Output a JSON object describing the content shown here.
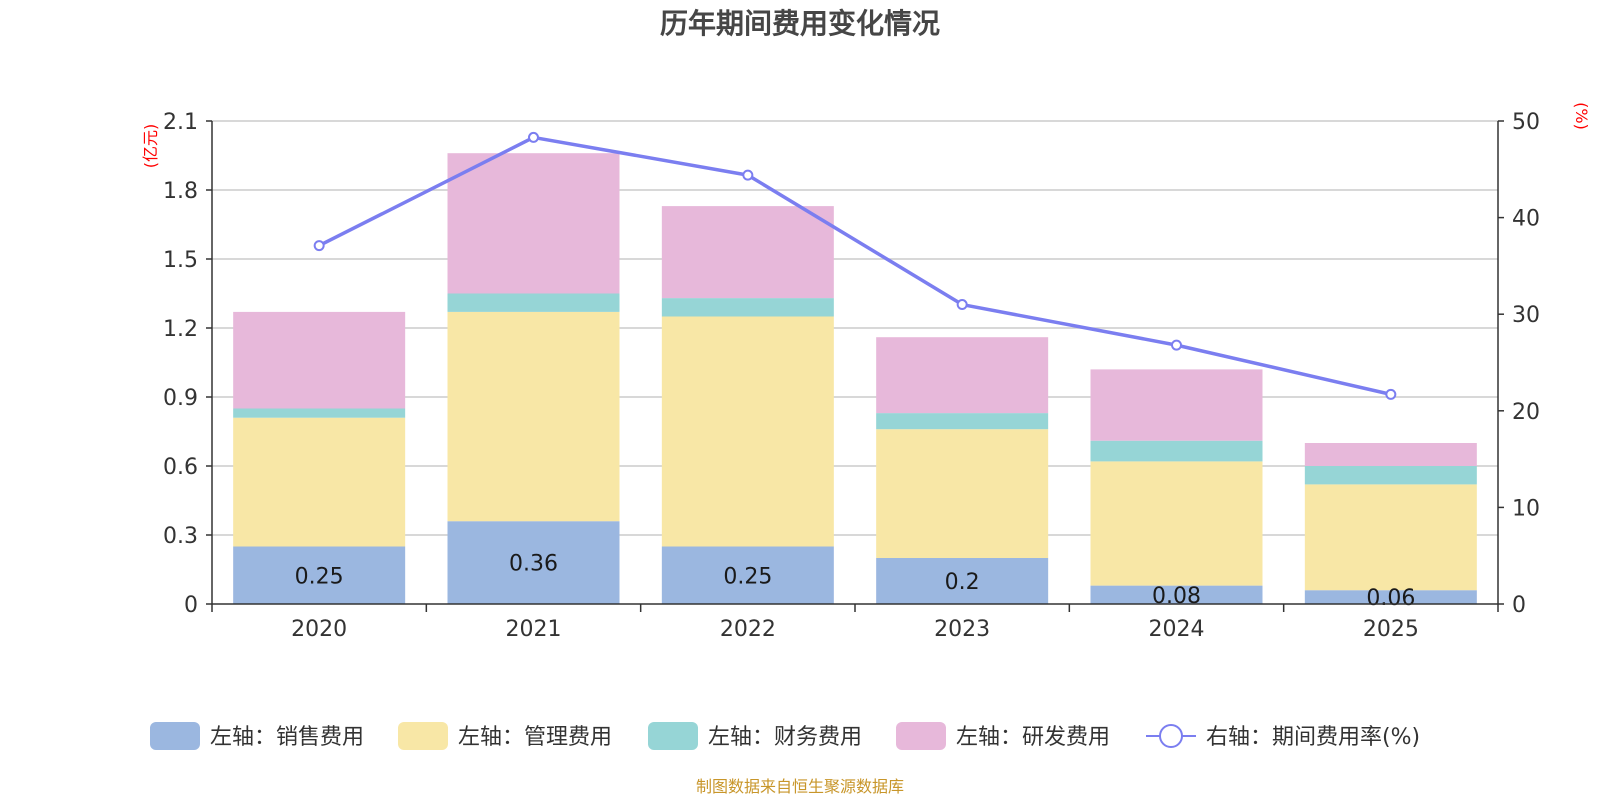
{
  "chart_data": {
    "type": "bar",
    "title": "历年期间费用变化情况",
    "categories": [
      "2020",
      "2021",
      "2022",
      "2023",
      "2024",
      "2025"
    ],
    "series": [
      {
        "name": "左轴：销售费用",
        "axis": "left",
        "kind": "bar",
        "color": "#9bb7e0",
        "values": [
          0.25,
          0.36,
          0.25,
          0.2,
          0.08,
          0.06
        ],
        "labels": [
          "0.25",
          "0.36",
          "0.25",
          "0.2",
          "0.08",
          "0.06"
        ]
      },
      {
        "name": "左轴：管理费用",
        "axis": "left",
        "kind": "bar",
        "color": "#f8e7a6",
        "values": [
          0.56,
          0.91,
          1.0,
          0.56,
          0.54,
          0.46
        ]
      },
      {
        "name": "左轴：财务费用",
        "axis": "left",
        "kind": "bar",
        "color": "#96d5d6",
        "values": [
          0.04,
          0.08,
          0.08,
          0.07,
          0.09,
          0.08
        ]
      },
      {
        "name": "左轴：研发费用",
        "axis": "left",
        "kind": "bar",
        "color": "#e7b8da",
        "values": [
          0.42,
          0.61,
          0.4,
          0.33,
          0.31,
          0.1
        ]
      },
      {
        "name": "右轴：期间费用率(%)",
        "axis": "right",
        "kind": "line",
        "color": "#7b7ef0",
        "values": [
          37.1,
          48.3,
          44.4,
          31.0,
          26.8,
          21.7
        ]
      }
    ],
    "left_axis": {
      "unit": "(亿元)",
      "min": 0,
      "max": 2.1,
      "ticks": [
        "0",
        "0.3",
        "0.6",
        "0.9",
        "1.2",
        "1.5",
        "1.8",
        "2.1"
      ]
    },
    "right_axis": {
      "unit": "(%)",
      "min": 0,
      "max": 50,
      "ticks": [
        "0",
        "10",
        "20",
        "30",
        "40",
        "50"
      ]
    },
    "grid": true,
    "legend_position": "bottom"
  },
  "source": "制图数据来自恒生聚源数据库"
}
